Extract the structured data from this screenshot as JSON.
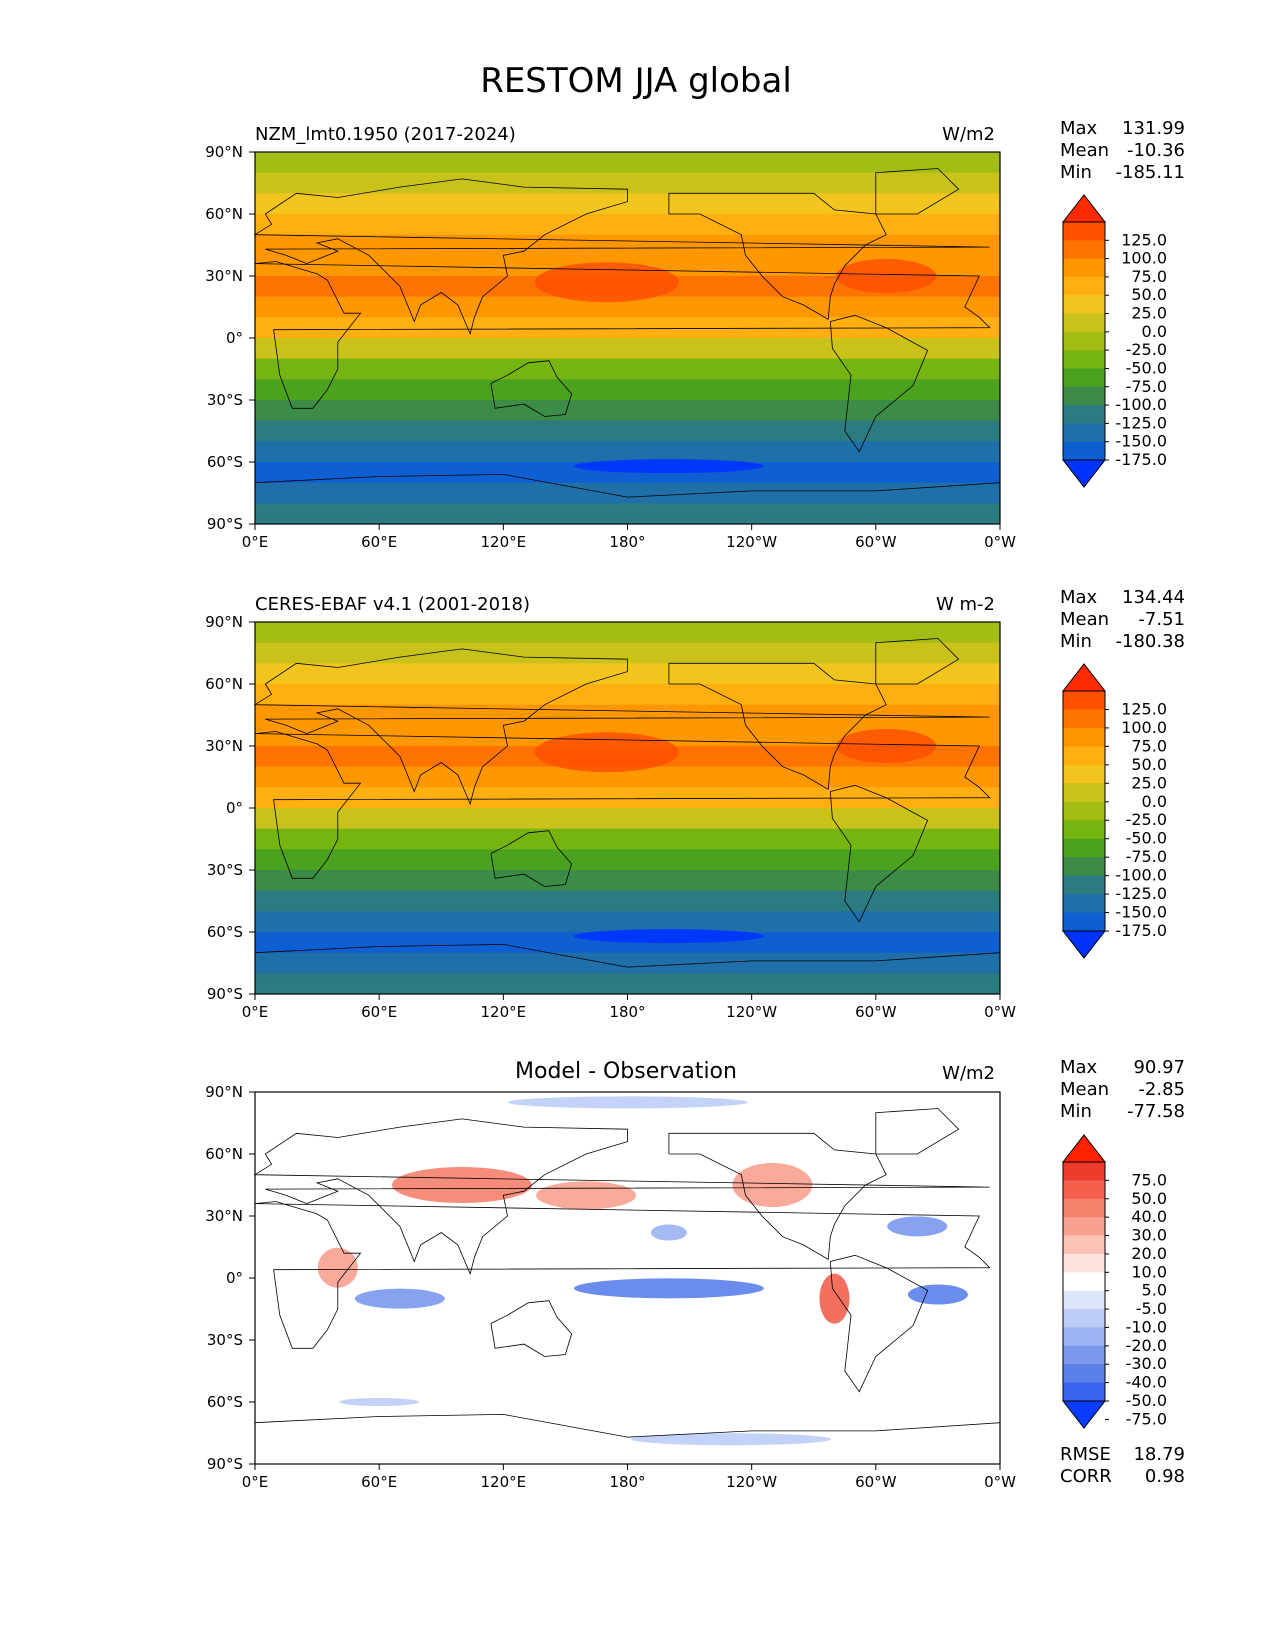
{
  "figure_title": "RESTOM JJA global",
  "x_tick_labels": [
    "0°E",
    "60°E",
    "120°E",
    "180°",
    "120°W",
    "60°W",
    "0°W"
  ],
  "y_tick_labels": [
    "90°N",
    "60°N",
    "30°N",
    "0°",
    "30°S",
    "60°S",
    "90°S"
  ],
  "chart_data": [
    {
      "type": "heatmap",
      "title_left": "NZM_lmt0.1950 (2017-2024)",
      "title_center": "",
      "units": "W/m2",
      "stats": {
        "max_label": "Max",
        "max": "131.99",
        "mean_label": "Mean",
        "mean": "-10.36",
        "min_label": "Min",
        "min": "-185.11"
      },
      "colorbar": {
        "levels": [
          "125.0",
          "100.0",
          "75.0",
          "50.0",
          "25.0",
          "0.0",
          "-25.0",
          "-50.0",
          "-75.0",
          "-100.0",
          "-125.0",
          "-150.0",
          "-175.0"
        ],
        "colors": [
          "#ff2a00",
          "#ff5000",
          "#ff7300",
          "#ff9800",
          "#ffb010",
          "#f2c41e",
          "#c8c21a",
          "#a3bd15",
          "#76b411",
          "#4aa21e",
          "#3c8c48",
          "#2b7b80",
          "#1f70a8",
          "#0e5fd2",
          "#0033ff"
        ]
      },
      "xlim": [
        0,
        360
      ],
      "ylim": [
        -90,
        90
      ]
    },
    {
      "type": "heatmap",
      "title_left": "CERES-EBAF v4.1 (2001-2018)",
      "title_center": "",
      "units": "W m-2",
      "stats": {
        "max_label": "Max",
        "max": "134.44",
        "mean_label": "Mean",
        "mean": "-7.51",
        "min_label": "Min",
        "min": "-180.38"
      },
      "colorbar": {
        "levels": [
          "125.0",
          "100.0",
          "75.0",
          "50.0",
          "25.0",
          "0.0",
          "-25.0",
          "-50.0",
          "-75.0",
          "-100.0",
          "-125.0",
          "-150.0",
          "-175.0"
        ],
        "colors": [
          "#ff2a00",
          "#ff5000",
          "#ff7300",
          "#ff9800",
          "#ffb010",
          "#f2c41e",
          "#c8c21a",
          "#a3bd15",
          "#76b411",
          "#4aa21e",
          "#3c8c48",
          "#2b7b80",
          "#1f70a8",
          "#0e5fd2",
          "#0033ff"
        ]
      },
      "xlim": [
        0,
        360
      ],
      "ylim": [
        -90,
        90
      ]
    },
    {
      "type": "heatmap",
      "title_left": "",
      "title_center": "Model - Observation",
      "units": "W/m2",
      "stats": {
        "max_label": "Max",
        "max": "90.97",
        "mean_label": "Mean",
        "mean": "-2.85",
        "min_label": "Min",
        "min": "-77.58"
      },
      "colorbar": {
        "levels": [
          "75.0",
          "50.0",
          "40.0",
          "30.0",
          "20.0",
          "10.0",
          "5.0",
          "-5.0",
          "-10.0",
          "-20.0",
          "-30.0",
          "-40.0",
          "-50.0",
          "-75.0"
        ],
        "colors": [
          "#ff2200",
          "#ee3b2b",
          "#f2604c",
          "#f5816d",
          "#f8a190",
          "#fbc2b6",
          "#fde2db",
          "#ffffff",
          "#dde5fb",
          "#bccdf7",
          "#9bb3f2",
          "#7a99ee",
          "#5a80ea",
          "#3a66ee",
          "#0a3cff"
        ]
      },
      "metrics": {
        "rmse_label": "RMSE",
        "rmse": "18.79",
        "corr_label": "CORR",
        "corr": "0.98"
      },
      "xlim": [
        0,
        360
      ],
      "ylim": [
        -90,
        90
      ]
    }
  ]
}
